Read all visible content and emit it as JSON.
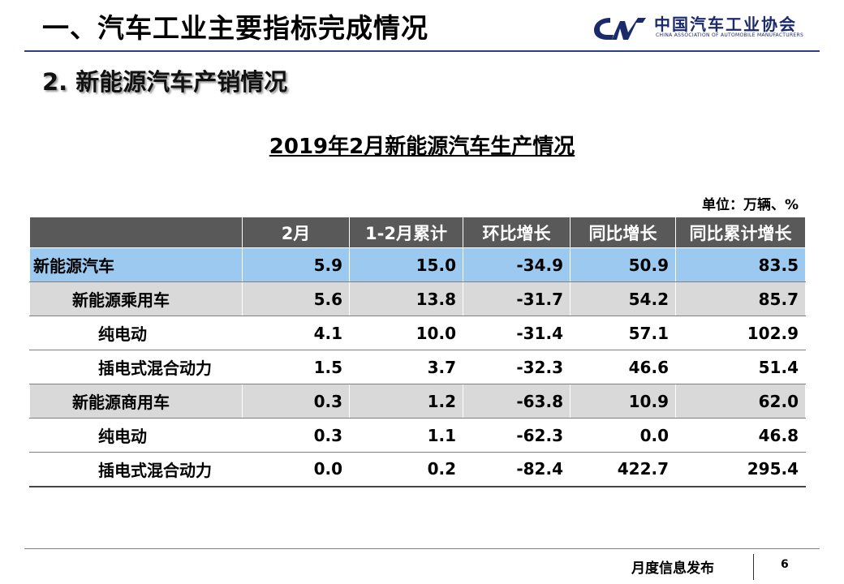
{
  "header": {
    "title": "一、汽车工业主要指标完成情况",
    "logo_cn": "中国汽车工业协会",
    "logo_en": "CHINA ASSOCIATION OF AUTOMOBILE MANUFACTURERS",
    "brand_color": "#1b2a6b"
  },
  "section": {
    "title": "2. 新能源汽车产销情况"
  },
  "table": {
    "title": "2019年2月新能源汽车生产情况",
    "unit": "单位：万辆、%",
    "columns": [
      "",
      "2月",
      "1-2月累计",
      "环比增长",
      "同比增长",
      "同比累计增长"
    ],
    "rows": [
      {
        "label": "新能源汽车",
        "values": [
          "5.9",
          "15.0",
          "-34.9",
          "50.9",
          "83.5"
        ]
      },
      {
        "label": "新能源乘用车",
        "values": [
          "5.6",
          "13.8",
          "-31.7",
          "54.2",
          "85.7"
        ]
      },
      {
        "label": "纯电动",
        "values": [
          "4.1",
          "10.0",
          "-31.4",
          "57.1",
          "102.9"
        ]
      },
      {
        "label": "插电式混合动力",
        "values": [
          "1.5",
          "3.7",
          "-32.3",
          "46.6",
          "51.4"
        ]
      },
      {
        "label": "新能源商用车",
        "values": [
          "0.3",
          "1.2",
          "-63.8",
          "10.9",
          "62.0"
        ]
      },
      {
        "label": "纯电动",
        "values": [
          "0.3",
          "1.1",
          "-62.3",
          "0.0",
          "46.8"
        ]
      },
      {
        "label": "插电式混合动力",
        "values": [
          "0.0",
          "0.2",
          "-82.4",
          "422.7",
          "295.4"
        ]
      }
    ],
    "colors": {
      "header_bg": "#595959",
      "highlight_bg": "#9cc9f0",
      "group_bg": "#d9d9d9"
    }
  },
  "footer": {
    "text": "月度信息发布",
    "page_number": "6"
  }
}
